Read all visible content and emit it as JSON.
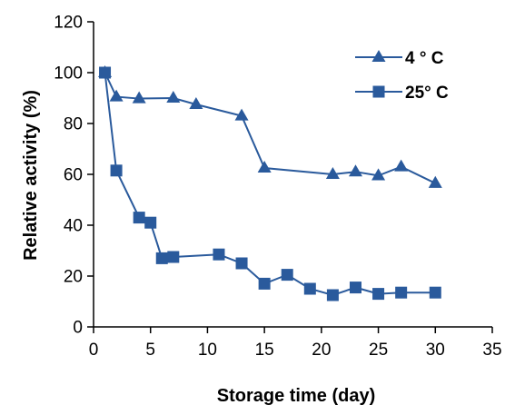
{
  "chart_data": {
    "type": "line",
    "title": "",
    "xlabel": "Storage time (day)",
    "ylabel": "Relative activity (%)",
    "xlim": [
      0,
      35
    ],
    "ylim": [
      0,
      120
    ],
    "xticks": [
      0,
      5,
      10,
      15,
      20,
      25,
      30,
      35
    ],
    "yticks": [
      0,
      20,
      40,
      60,
      80,
      100,
      120
    ],
    "grid": false,
    "legend_position": "top-right",
    "series": [
      {
        "name": "4 ° C",
        "marker": "triangle",
        "color": "#2a5a9c",
        "x": [
          1,
          2,
          4,
          7,
          9,
          13,
          15,
          21,
          23,
          25,
          27,
          30
        ],
        "y": [
          100,
          90.5,
          89.8,
          90,
          87.5,
          83,
          62.5,
          60,
          61,
          59.5,
          63,
          56.5
        ]
      },
      {
        "name": "25° C",
        "marker": "square",
        "color": "#2a5a9c",
        "x": [
          1,
          2,
          4,
          5,
          6,
          7,
          11,
          13,
          15,
          17,
          19,
          21,
          23,
          25,
          27,
          30
        ],
        "y": [
          100,
          61.5,
          43,
          41,
          27,
          27.5,
          28.5,
          25,
          17,
          20.5,
          15,
          12.5,
          15.5,
          13,
          13.5,
          13.5
        ]
      }
    ]
  }
}
